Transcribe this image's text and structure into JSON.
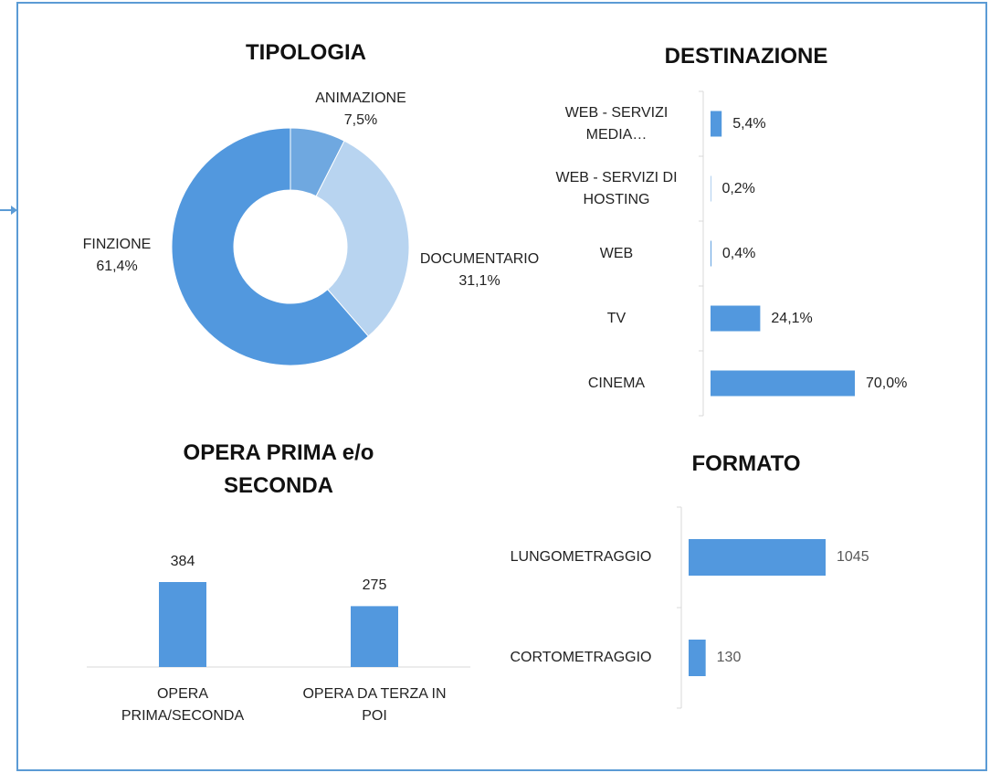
{
  "chart_data": [
    {
      "type": "donut",
      "title": "TIPOLOGIA",
      "categories": [
        "ANIMAZIONE",
        "DOCUMENTARIO",
        "FINZIONE"
      ],
      "values": [
        7.5,
        31.1,
        61.4
      ],
      "value_labels": [
        "7,5%",
        "31,1%",
        "61,4%"
      ],
      "colors": [
        "#6fa8e0",
        "#b8d4f0",
        "#5298de"
      ]
    },
    {
      "type": "hbar",
      "title": "DESTINAZIONE",
      "categories": [
        "WEB - SERVIZI MEDIA…",
        "WEB - SERVIZI DI HOSTING",
        "WEB",
        "TV",
        "CINEMA"
      ],
      "values": [
        5.4,
        0.2,
        0.4,
        24.1,
        70.0
      ],
      "value_labels": [
        "5,4%",
        "0,2%",
        "0,4%",
        "24,1%",
        "70,0%"
      ],
      "color": "#5298de"
    },
    {
      "type": "bar",
      "title": "OPERA PRIMA e/o SECONDA",
      "categories": [
        "OPERA PRIMA/SECONDA",
        "OPERA DA TERZA IN POI"
      ],
      "values": [
        384,
        275
      ],
      "color": "#5298de"
    },
    {
      "type": "hbar",
      "title": "FORMATO",
      "categories": [
        "LUNGOMETRAGGIO",
        "CORTOMETRAGGIO"
      ],
      "values": [
        1045,
        130
      ],
      "color": "#5298de",
      "value_color": "#595959"
    }
  ]
}
